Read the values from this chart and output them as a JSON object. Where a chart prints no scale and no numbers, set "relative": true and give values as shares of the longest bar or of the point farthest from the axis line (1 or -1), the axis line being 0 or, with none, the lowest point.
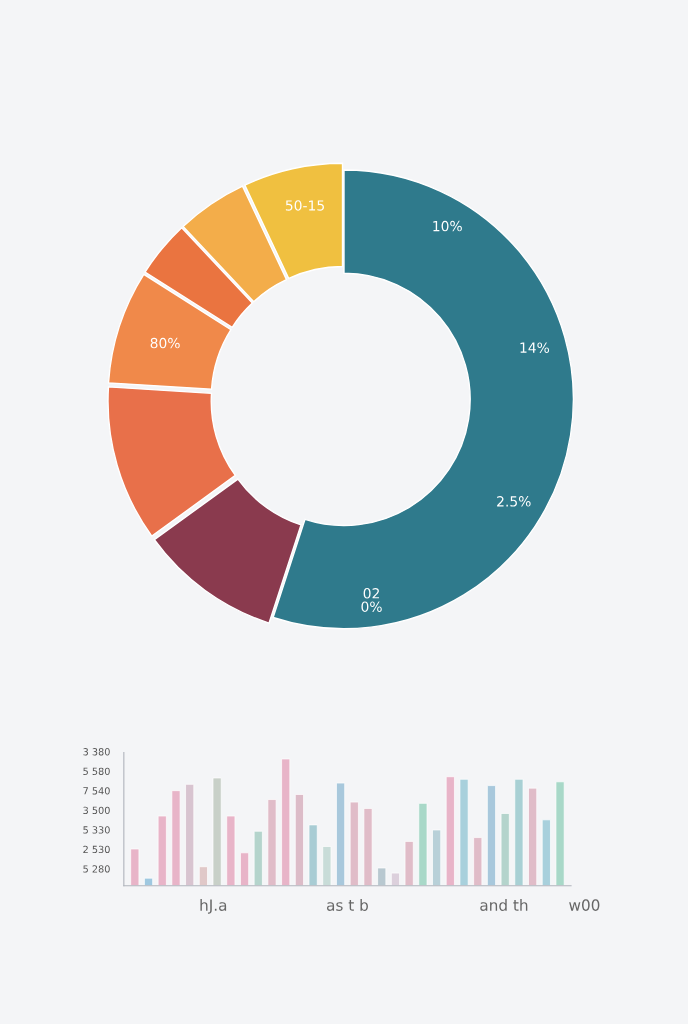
{
  "chart_data": [
    {
      "type": "donut",
      "categories": [
        null,
        null,
        null,
        null,
        null,
        null,
        null
      ],
      "values": [
        55,
        10,
        11,
        8,
        4,
        5,
        7
      ],
      "colors": [
        "#2f7a8c",
        "#8a3a4e",
        "#e8704a",
        "#f0894a",
        "#ea7440",
        "#f3ad4a",
        "#f0c040"
      ],
      "annotations": [
        "10%",
        "14%",
        "2.5%",
        "02\n0%",
        "80%",
        "50-15"
      ]
    },
    {
      "type": "bar",
      "relative": true,
      "categories": [
        null,
        null,
        null,
        null,
        null,
        null,
        null,
        null,
        null,
        null,
        null,
        null,
        null,
        null,
        null,
        null,
        null,
        null,
        null,
        null,
        null,
        null,
        null,
        null,
        null,
        null,
        null,
        null,
        null,
        null,
        null,
        null
      ],
      "values": [
        0.29,
        0.06,
        0.55,
        0.75,
        0.8,
        0.15,
        0.85,
        0.55,
        0.26,
        0.43,
        0.68,
        1.0,
        0.72,
        0.48,
        0.31,
        0.81,
        0.66,
        0.61,
        0.14,
        0.1,
        0.35,
        0.65,
        0.44,
        0.86,
        0.84,
        0.38,
        0.79,
        0.57,
        0.84,
        0.77,
        0.52,
        0.82
      ],
      "colors": [
        "#e8b4c8",
        "#9fc8e0",
        "#e8b4c8",
        "#e8b4c8",
        "#d8c4d0",
        "#e0c8c8",
        "#c8d0c8",
        "#e8b4c8",
        "#e8b4c8",
        "#b4d4cc",
        "#e0bcc8",
        "#e8b4c8",
        "#dcbcc8",
        "#a8ccd4",
        "#c8dcd8",
        "#a8c8dc",
        "#e0bcc8",
        "#e0bcc8",
        "#b8c8d0",
        "#dcd0dc",
        "#e0bcc8",
        "#a8d8c8",
        "#b8d0d8",
        "#e8b4c8",
        "#a8d0dc",
        "#e0bcc8",
        "#a8c8dc",
        "#b4d4cc",
        "#a8d0d4",
        "#e0bcc8",
        "#a8d0dc",
        "#a8d8c8"
      ],
      "annotations": [
        "3 380",
        "5 580",
        "7 540",
        "3 500",
        "5 330",
        "2 530",
        "5 280",
        "hJ.a",
        "as t b",
        "and th",
        "w00"
      ]
    }
  ]
}
